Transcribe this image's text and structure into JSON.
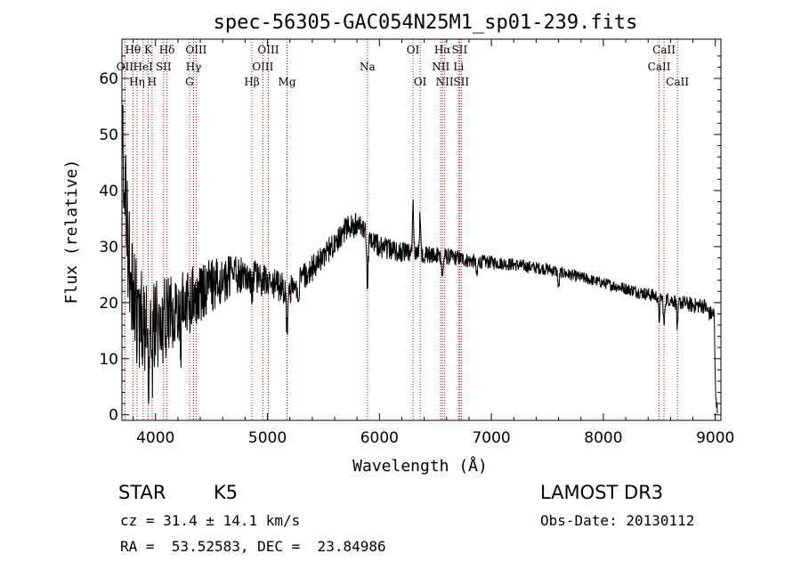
{
  "chart_data": {
    "type": "line",
    "title": "spec-56305-GAC054N25M1_sp01-239.fits",
    "xlabel": "Wavelength (Å)",
    "ylabel": "Flux (relative)",
    "xlim": [
      3700,
      9050
    ],
    "ylim": [
      -1,
      67
    ],
    "xticks": [
      4000,
      5000,
      6000,
      7000,
      8000,
      9000
    ],
    "yticks": [
      0,
      10,
      20,
      30,
      40,
      50,
      60
    ],
    "tick_labels_x": [
      "4000",
      "5000",
      "6000",
      "7000",
      "8000",
      "9000"
    ],
    "tick_labels_y": [
      "0",
      "10",
      "20",
      "30",
      "40",
      "50",
      "60"
    ],
    "continuum": [
      [
        3700,
        55
      ],
      [
        3720,
        40
      ],
      [
        3760,
        28
      ],
      [
        3800,
        20
      ],
      [
        3850,
        18
      ],
      [
        3900,
        15
      ],
      [
        3950,
        14
      ],
      [
        4000,
        16
      ],
      [
        4100,
        17
      ],
      [
        4200,
        19
      ],
      [
        4300,
        21
      ],
      [
        4400,
        22
      ],
      [
        4500,
        23
      ],
      [
        4600,
        24
      ],
      [
        4700,
        25
      ],
      [
        4800,
        25
      ],
      [
        4900,
        24.5
      ],
      [
        5000,
        23.5
      ],
      [
        5100,
        23
      ],
      [
        5200,
        22
      ],
      [
        5300,
        24
      ],
      [
        5400,
        26
      ],
      [
        5500,
        28
      ],
      [
        5600,
        31
      ],
      [
        5700,
        33
      ],
      [
        5800,
        34
      ],
      [
        5900,
        32
      ],
      [
        6000,
        30
      ],
      [
        6100,
        29.5
      ],
      [
        6200,
        29
      ],
      [
        6300,
        28.8
      ],
      [
        6400,
        28.6
      ],
      [
        6500,
        28.5
      ],
      [
        6600,
        28.2
      ],
      [
        6700,
        28
      ],
      [
        6800,
        27.5
      ],
      [
        6900,
        27.3
      ],
      [
        7000,
        27.2
      ],
      [
        7100,
        27
      ],
      [
        7200,
        26.8
      ],
      [
        7300,
        26.5
      ],
      [
        7400,
        26.2
      ],
      [
        7500,
        26
      ],
      [
        7600,
        25.5
      ],
      [
        7700,
        25
      ],
      [
        7800,
        24.5
      ],
      [
        7900,
        24
      ],
      [
        8000,
        23.5
      ],
      [
        8100,
        23
      ],
      [
        8200,
        22.5
      ],
      [
        8300,
        22
      ],
      [
        8400,
        21.5
      ],
      [
        8500,
        21
      ],
      [
        8600,
        20.5
      ],
      [
        8700,
        20
      ],
      [
        8800,
        19.5
      ],
      [
        8900,
        19.5
      ],
      [
        8950,
        18
      ],
      [
        8990,
        18
      ],
      [
        9000,
        5
      ],
      [
        9020,
        0
      ]
    ],
    "absorption_features": [
      {
        "wave": 3934,
        "depth": 8
      },
      {
        "wave": 3969,
        "depth": 7
      },
      {
        "wave": 4227,
        "depth": 6
      },
      {
        "wave": 4300,
        "depth": 4
      },
      {
        "wave": 4861,
        "depth": 3
      },
      {
        "wave": 5175,
        "depth": 7
      },
      {
        "wave": 5270,
        "depth": 3
      },
      {
        "wave": 5893,
        "depth": 9
      },
      {
        "wave": 6300,
        "depth": -9
      },
      {
        "wave": 6364,
        "depth": -7
      },
      {
        "wave": 6563,
        "depth": 4
      },
      {
        "wave": 6870,
        "depth": 3
      },
      {
        "wave": 7600,
        "depth": 3
      },
      {
        "wave": 8498,
        "depth": 4
      },
      {
        "wave": 8542,
        "depth": 5
      },
      {
        "wave": 8662,
        "depth": 5
      }
    ],
    "noise_amplitude": [
      [
        3700,
        12
      ],
      [
        3900,
        9
      ],
      [
        4300,
        6
      ],
      [
        4800,
        3
      ],
      [
        5500,
        2.5
      ],
      [
        6200,
        1.8
      ],
      [
        7000,
        1.2
      ],
      [
        8000,
        1.0
      ],
      [
        9000,
        1.5
      ]
    ],
    "lines": [
      {
        "wave": 3727,
        "label": "OII",
        "row": 2
      },
      {
        "wave": 3798,
        "label": "Hθ",
        "row": 1
      },
      {
        "wave": 3835,
        "label": "Hη",
        "row": 3
      },
      {
        "wave": 3889,
        "label": "HeI",
        "row": 2
      },
      {
        "wave": 3934,
        "label": "K",
        "row": 1
      },
      {
        "wave": 3969,
        "label": "H",
        "row": 3
      },
      {
        "wave": 4072,
        "label": "SII",
        "row": 2
      },
      {
        "wave": 4102,
        "label": "Hδ",
        "row": 1
      },
      {
        "wave": 4304,
        "label": "G",
        "row": 3
      },
      {
        "wave": 4340,
        "label": "Hγ",
        "row": 2
      },
      {
        "wave": 4363,
        "label": "OIII",
        "row": 1
      },
      {
        "wave": 4861,
        "label": "Hβ",
        "row": 3
      },
      {
        "wave": 4959,
        "label": "OIII",
        "row": 2
      },
      {
        "wave": 5007,
        "label": "OIII",
        "row": 1
      },
      {
        "wave": 5175,
        "label": "Mg",
        "row": 3
      },
      {
        "wave": 5893,
        "label": "Na",
        "row": 2
      },
      {
        "wave": 6300,
        "label": "OI",
        "row": 1
      },
      {
        "wave": 6364,
        "label": "OI",
        "row": 3
      },
      {
        "wave": 6548,
        "label": "NII",
        "row": 2
      },
      {
        "wave": 6563,
        "label": "Hα",
        "row": 1
      },
      {
        "wave": 6583,
        "label": "NII",
        "row": 3
      },
      {
        "wave": 6707,
        "label": "Li",
        "row": 2
      },
      {
        "wave": 6716,
        "label": "SII",
        "row": 1
      },
      {
        "wave": 6731,
        "label": "SII",
        "row": 3
      },
      {
        "wave": 8498,
        "label": "CaII",
        "row": 2
      },
      {
        "wave": 8542,
        "label": "CaII",
        "row": 1
      },
      {
        "wave": 8662,
        "label": "CaII",
        "row": 3
      }
    ]
  },
  "info": {
    "class": "STAR",
    "subclass": "K5",
    "cz": "cz = 31.4 ± 14.1 km/s",
    "radec": "RA =  53.52583, DEC =  23.84986",
    "survey": "LAMOST DR3",
    "obsdate": "Obs-Date: 20130112"
  },
  "colors": {
    "line_marker": "#c00000",
    "spectrum": "#000000",
    "axes": "#000000"
  }
}
